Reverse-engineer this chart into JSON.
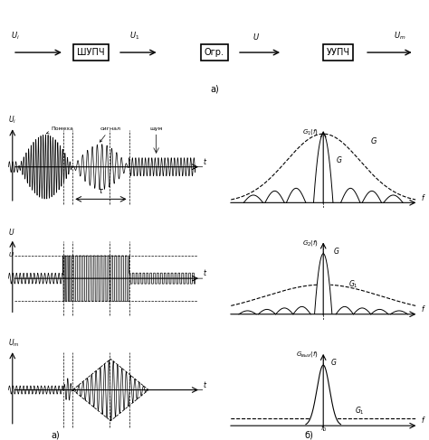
{
  "background_color": "#ffffff",
  "block_labels": [
    "ШУПЧ",
    "Огр.",
    "УУПЧ"
  ],
  "arrow_labels": [
    "U_i",
    "U_1",
    "U",
    "U_m"
  ],
  "label_a_top": "а)",
  "label_a_bottom": "а)",
  "label_b_bottom": "б)",
  "ylabels_time": [
    "$U_i$",
    "$U$",
    "$U_m$"
  ],
  "ylabels_freq": [
    "$G_1(f)$",
    "$G_2(f)$",
    "$G_{вых}(f)$"
  ]
}
